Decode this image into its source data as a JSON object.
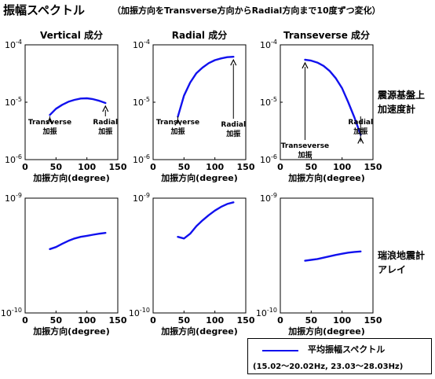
{
  "title": "振幅スペクトル",
  "subtitle": "（加振方向をTransverse方向からRadial方向まで10度ずつ変化）",
  "side_labels": {
    "row0": [
      "震源基盤上",
      "加速度計"
    ],
    "row1": [
      "瑞浪地震計",
      "アレイ"
    ]
  },
  "legend": {
    "title": "平均振幅スペクトル",
    "subtitle": "(15.02～20.02Hz, 23.03～28.03Hz)",
    "line_color": "#1111ee"
  },
  "chart_data": [
    {
      "type": "line",
      "title": "Vertical 成分",
      "xlabel": "加振方向(degree)",
      "ylabel": "",
      "xlim": [
        0,
        150
      ],
      "xticks": [
        0,
        50,
        100,
        150
      ],
      "ylim": [
        1e-06,
        0.0001
      ],
      "yscale": "log",
      "ytick_labels": [
        {
          "value": 0.0001,
          "base": "10",
          "exp": "-4"
        },
        {
          "value": 1e-05,
          "base": "10",
          "exp": "-5"
        },
        {
          "value": 1e-06,
          "base": "10",
          "exp": "-6"
        }
      ],
      "x": [
        40,
        50,
        60,
        70,
        80,
        90,
        100,
        110,
        120,
        130
      ],
      "y": [
        6e-06,
        7.7e-06,
        9e-06,
        1.02e-05,
        1.1e-05,
        1.16e-05,
        1.17e-05,
        1.13e-05,
        1.06e-05,
        9.7e-06
      ],
      "annotations": [
        {
          "lines": [
            "Transverse",
            "加振"
          ],
          "x": 40
        },
        {
          "lines": [
            "Radial",
            "加振"
          ],
          "x": 130
        }
      ]
    },
    {
      "type": "line",
      "title": "Radial 成分",
      "xlabel": "加振方向(degree)",
      "ylabel": "",
      "xlim": [
        0,
        150
      ],
      "xticks": [
        0,
        50,
        100,
        150
      ],
      "ylim": [
        1e-06,
        0.0001
      ],
      "yscale": "log",
      "ytick_labels": [
        {
          "value": 0.0001,
          "base": "10",
          "exp": "-4"
        },
        {
          "value": 1e-05,
          "base": "10",
          "exp": "-5"
        },
        {
          "value": 1e-06,
          "base": "10",
          "exp": "-6"
        }
      ],
      "x": [
        40,
        50,
        60,
        70,
        80,
        90,
        100,
        110,
        120,
        130
      ],
      "y": [
        5.6e-06,
        1.3e-05,
        2.2e-05,
        3.2e-05,
        4e-05,
        4.8e-05,
        5.4e-05,
        5.8e-05,
        6.1e-05,
        6.2e-05
      ],
      "annotations": [
        {
          "lines": [
            "Transverse",
            "加振"
          ],
          "x": 40
        },
        {
          "lines": [
            "Radial",
            "加振"
          ],
          "x": 130
        }
      ]
    },
    {
      "type": "line",
      "title": "Transeverse 成分",
      "xlabel": "加振方向(degree)",
      "ylabel": "",
      "xlim": [
        0,
        150
      ],
      "xticks": [
        0,
        50,
        100,
        150
      ],
      "ylim": [
        1e-06,
        0.0001
      ],
      "yscale": "log",
      "ytick_labels": [
        {
          "value": 0.0001,
          "base": "10",
          "exp": "-4"
        },
        {
          "value": 1e-05,
          "base": "10",
          "exp": "-5"
        },
        {
          "value": 1e-06,
          "base": "10",
          "exp": "-6"
        }
      ],
      "x": [
        40,
        50,
        60,
        70,
        80,
        90,
        100,
        110,
        120,
        130
      ],
      "y": [
        5.5e-05,
        5.3e-05,
        4.9e-05,
        4.3e-05,
        3.5e-05,
        2.6e-05,
        1.75e-05,
        1e-05,
        5.4e-06,
        2.7e-06
      ],
      "annotations": [
        {
          "lines": [
            "Transeverse",
            "加振"
          ],
          "x": 40
        },
        {
          "lines": [
            "Radial",
            "加振"
          ],
          "x": 130
        }
      ]
    },
    {
      "type": "line",
      "title": "",
      "xlabel": "加振方向(degree)",
      "ylabel": "",
      "xlim": [
        0,
        150
      ],
      "xticks": [
        0,
        50,
        100,
        150
      ],
      "ylim": [
        1e-10,
        1e-09
      ],
      "yscale": "log",
      "ytick_labels": [
        {
          "value": 1e-09,
          "base": "10",
          "exp": "-9"
        },
        {
          "value": 1e-10,
          "base": "10",
          "exp": "-10"
        }
      ],
      "x": [
        40,
        50,
        60,
        70,
        80,
        90,
        100,
        110,
        120,
        130
      ],
      "y": [
        3.6e-10,
        3.75e-10,
        4e-10,
        4.25e-10,
        4.45e-10,
        4.6e-10,
        4.7e-10,
        4.8e-10,
        4.9e-10,
        4.98e-10
      ],
      "annotations": []
    },
    {
      "type": "line",
      "title": "",
      "xlabel": "加振方向(degree)",
      "ylabel": "",
      "xlim": [
        0,
        150
      ],
      "xticks": [
        0,
        50,
        100,
        150
      ],
      "ylim": [
        1e-10,
        1e-09
      ],
      "yscale": "log",
      "ytick_labels": [
        {
          "value": 1e-09,
          "base": "10",
          "exp": "-9"
        },
        {
          "value": 1e-10,
          "base": "10",
          "exp": "-10"
        }
      ],
      "x": [
        40,
        50,
        60,
        70,
        80,
        90,
        100,
        110,
        120,
        130
      ],
      "y": [
        4.6e-10,
        4.45e-10,
        4.9e-10,
        5.7e-10,
        6.4e-10,
        7.1e-10,
        7.8e-10,
        8.4e-10,
        8.9e-10,
        9.2e-10
      ],
      "annotations": []
    },
    {
      "type": "line",
      "title": "",
      "xlabel": "加振方向(degree)",
      "ylabel": "",
      "xlim": [
        0,
        150
      ],
      "xticks": [
        0,
        50,
        100,
        150
      ],
      "ylim": [
        1e-10,
        1e-09
      ],
      "yscale": "log",
      "ytick_labels": [
        {
          "value": 1e-09,
          "base": "10",
          "exp": "-9"
        },
        {
          "value": 1e-10,
          "base": "10",
          "exp": "-10"
        }
      ],
      "x": [
        40,
        50,
        60,
        70,
        80,
        90,
        100,
        110,
        120,
        130
      ],
      "y": [
        2.85e-10,
        2.9e-10,
        2.95e-10,
        3.03e-10,
        3.12e-10,
        3.2e-10,
        3.28e-10,
        3.35e-10,
        3.4e-10,
        3.43e-10
      ],
      "annotations": []
    }
  ]
}
